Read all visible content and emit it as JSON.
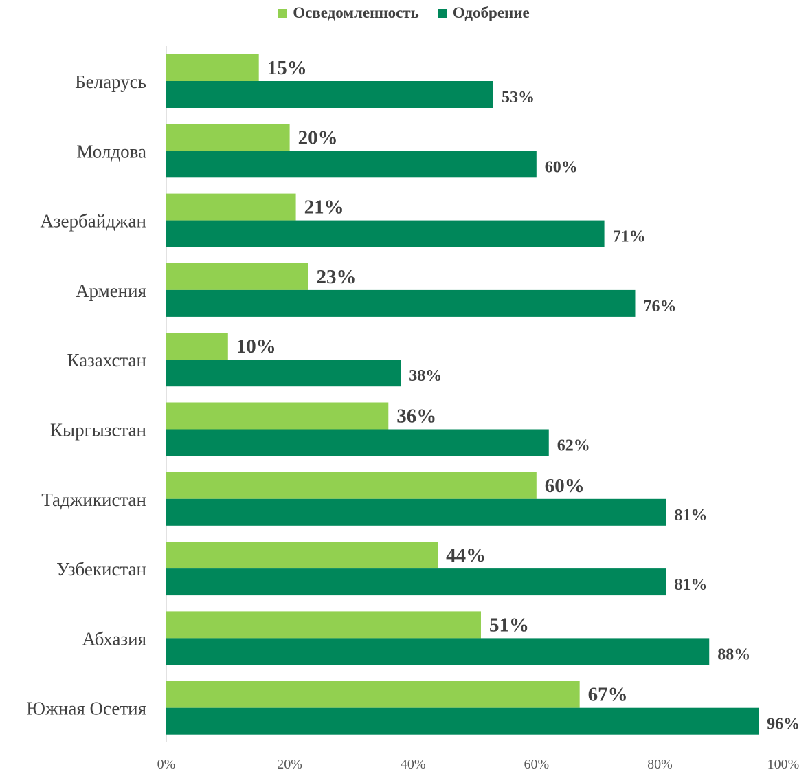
{
  "chart_data": {
    "type": "bar",
    "orientation": "horizontal",
    "categories": [
      "Беларусь",
      "Молдова",
      "Азербайджан",
      "Армения",
      "Казахстан",
      "Кыргызстан",
      "Таджикистан",
      "Узбекистан",
      "Абхазия",
      "Южная Осетия"
    ],
    "series": [
      {
        "name": "Осведомленность",
        "color": "#92d050",
        "values": [
          15,
          20,
          21,
          23,
          10,
          36,
          60,
          44,
          51,
          67
        ],
        "labels": [
          "15%",
          "20%",
          "21%",
          "23%",
          "10%",
          "36%",
          "60%",
          "44%",
          "51%",
          "67%"
        ]
      },
      {
        "name": "Одобрение",
        "color": "#00875a",
        "values": [
          53,
          60,
          71,
          76,
          38,
          62,
          81,
          81,
          88,
          96
        ],
        "labels": [
          "53%",
          "60%",
          "71%",
          "76%",
          "38%",
          "62%",
          "81%",
          "81%",
          "88%",
          "96%"
        ]
      }
    ],
    "x_ticks": [
      "0%",
      "20%",
      "40%",
      "60%",
      "80%",
      "100%"
    ],
    "xlim": [
      0,
      100
    ],
    "grid": false,
    "legend_position": "top-center",
    "title": "",
    "xlabel": "",
    "ylabel": ""
  }
}
